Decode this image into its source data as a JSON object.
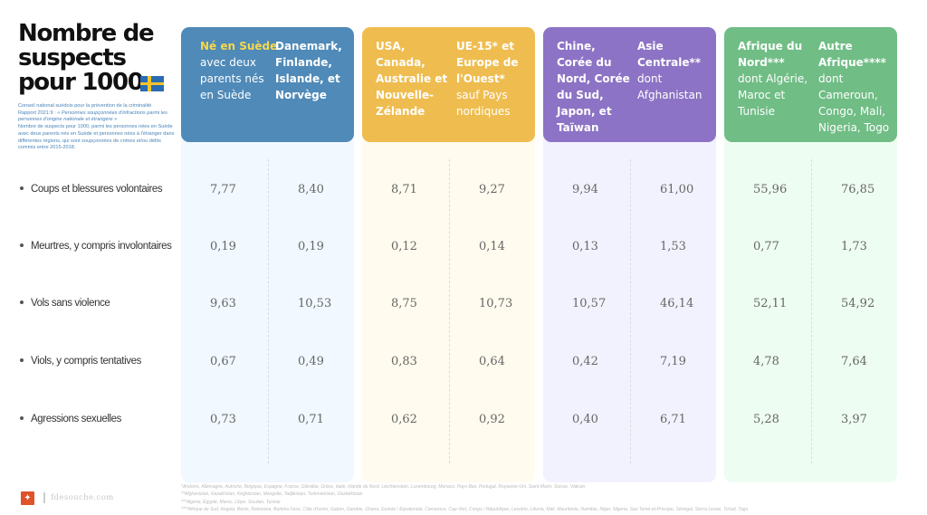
{
  "title": "Nombre de suspects pour 1000",
  "flag_icon": "sweden-flag",
  "source": {
    "line1": "Conseil national suédois pour la prévention de la criminalité",
    "line2_prefix": "Rapport 2021:9 : ",
    "line2_italic": "« Personnes soupçonnées d'infractions parmi les personnes d'origine nationale et étrangère »",
    "line3": "Nombre de suspects pour 1000, parmi les personnes nées en Suède avec deux parents nés en Suède et personnes nées à l'étranger dans différentes régions, qui sont soupçonnées de crimes et/ou délits commis entre 2015-2018."
  },
  "colors": {
    "blue": "#4f8ab8",
    "blue_bg": "#f1f8ff",
    "yellow": "#efbd4f",
    "yellow_bg": "#fffbee",
    "purple": "#8d73c5",
    "purple_bg": "#f2f2ff",
    "green": "#70bd85",
    "green_bg": "#eefdf1",
    "highlight": "#f6d84a"
  },
  "chart_data": {
    "type": "table",
    "title": "Nombre de suspects pour 1000",
    "categories": [
      "Coups et blessures volontaires",
      "Meurtres, y compris involontaires",
      "Vols sans violence",
      "Viols, y compris tentatives",
      "Agressions sexuelles"
    ],
    "series": [
      {
        "name": "Né en Suède avec deux parents nés en Suède",
        "group": "blue",
        "head_bold": "Né en Suède",
        "head_rest": "avec deux parents nés en Suède",
        "values": [
          "7,77",
          "0,19",
          "9,63",
          "0,67",
          "0,73"
        ]
      },
      {
        "name": "Danemark, Finlande, Islande, et Norvège",
        "group": "blue",
        "head_bold": "Danemark, Finlande, Islande, et Norvège",
        "head_rest": "",
        "values": [
          "8,40",
          "0,19",
          "10,53",
          "0,49",
          "0,71"
        ]
      },
      {
        "name": "USA, Canada, Australie et Nouvelle-Zélande",
        "group": "yellow",
        "head_bold": "USA, Canada, Australie et Nouvelle-Zélande",
        "head_rest": "",
        "values": [
          "8,71",
          "0,12",
          "8,75",
          "0,83",
          "0,62"
        ]
      },
      {
        "name": "UE-15* et Europe de l'Ouest* sauf Pays nordiques",
        "group": "yellow",
        "head_bold": "UE-15* et Europe de l'Ouest*",
        "head_rest": "sauf Pays nordiques",
        "values": [
          "9,27",
          "0,14",
          "10,73",
          "0,64",
          "0,92"
        ]
      },
      {
        "name": "Chine, Corée du Nord, Corée du Sud, Japon, et Taïwan",
        "group": "purple",
        "head_bold": "Chine, Corée du Nord, Corée du Sud, Japon, et Taïwan",
        "head_rest": "",
        "values": [
          "9,94",
          "0,13",
          "10,57",
          "0,42",
          "0,40"
        ]
      },
      {
        "name": "Asie Centrale** dont Afghanistan",
        "group": "purple",
        "head_bold": "Asie Centrale**",
        "head_rest": "dont Afghanistan",
        "values": [
          "61,00",
          "1,53",
          "46,14",
          "7,19",
          "6,71"
        ]
      },
      {
        "name": "Afrique du Nord*** dont Algérie, Maroc et Tunisie",
        "group": "green",
        "head_bold": "Afrique du Nord***",
        "head_rest": "dont Algérie, Maroc et Tunisie",
        "values": [
          "55,96",
          "0,77",
          "52,11",
          "4,78",
          "5,28"
        ]
      },
      {
        "name": "Autre Afrique**** dont Cameroun, Congo, Mali, Nigeria, Togo",
        "group": "green",
        "head_bold": "Autre Afrique****",
        "head_rest": "dont Cameroun, Congo, Mali, Nigeria, Togo",
        "values": [
          "76,85",
          "1,73",
          "54,92",
          "7,64",
          "3,97"
        ]
      }
    ]
  },
  "footnotes": [
    "*Andorre, Allemagne, Autriche, Belgique, Espagne, France, Gibraltar, Grèce, Italie, Irlande du Nord, Liechtenstein, Luxembourg, Monaco, Pays-Bas, Portugal, Royaume-Uni, Saint-Marin, Suisse, Vatican",
    "**Afghanistan, Kazakhstan, Kirghizistan, Mongolie, Tadjikistan, Turkménistan, Ouzbékistan",
    "***Algérie, Égypte, Maroc, Libye, Soudan, Tunisie",
    "****Afrique du Sud, Angola, Bénin, Botswana, Burkina Faso, Côte d'Ivoire, Gabon, Gambie, Ghana, Guinée / Équatoriale, Cameroun, Cap-Vert, Congo / République, Lesotho, Liberia, Mali, Mauritanie, Namibie, Niger, Nigeria, Sao Tomé-et-Principe, Sénégal, Sierra Leone, Tchad, Togo"
  ],
  "footer": {
    "logo_icon": "rooster-icon",
    "site": "fdesouche.com"
  }
}
